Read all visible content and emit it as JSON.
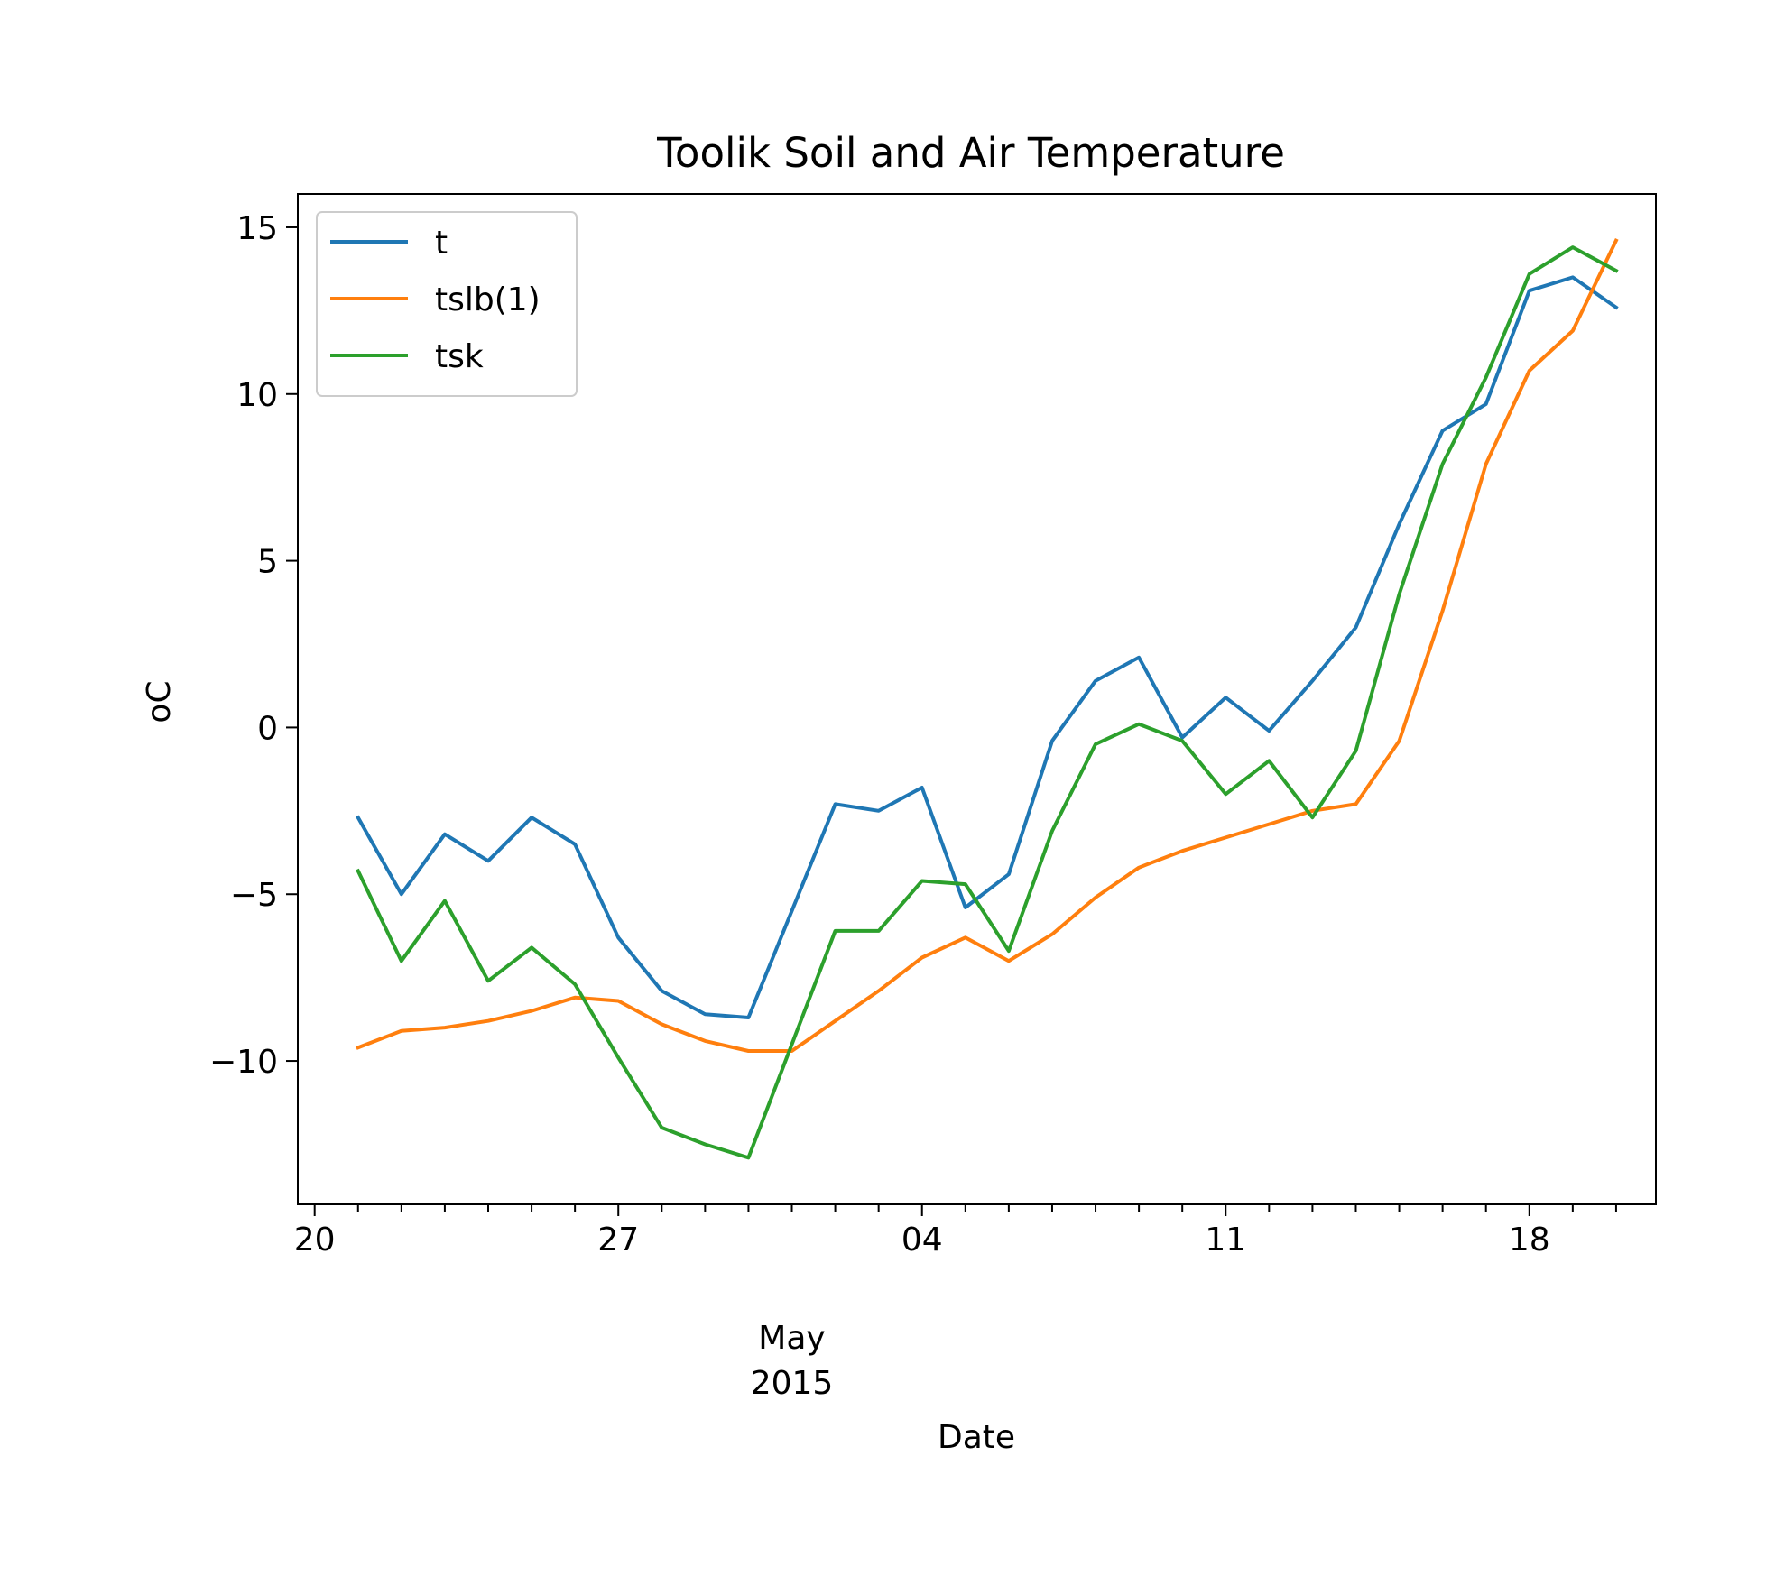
{
  "chart_data": {
    "type": "line",
    "title": "Toolik Soil and Air Temperature",
    "xlabel": "Date",
    "ylabel": "oC",
    "x_major_ticks": [
      {
        "date": "2015-04-20",
        "label": "20"
      },
      {
        "date": "2015-04-27",
        "label": "27"
      },
      {
        "date": "2015-05-04",
        "label": "04"
      },
      {
        "date": "2015-05-11",
        "label": "11"
      },
      {
        "date": "2015-05-18",
        "label": "18"
      }
    ],
    "x_minor_tick_dates": [
      "2015-04-21",
      "2015-04-22",
      "2015-04-23",
      "2015-04-24",
      "2015-04-25",
      "2015-04-26",
      "2015-04-28",
      "2015-04-29",
      "2015-04-30",
      "2015-05-01",
      "2015-05-02",
      "2015-05-03",
      "2015-05-05",
      "2015-05-06",
      "2015-05-07",
      "2015-05-08",
      "2015-05-09",
      "2015-05-10",
      "2015-05-12",
      "2015-05-13",
      "2015-05-14",
      "2015-05-15",
      "2015-05-16",
      "2015-05-17",
      "2015-05-19",
      "2015-05-20"
    ],
    "x_month_label": {
      "date": "2015-05-01",
      "lines": [
        "May",
        "2015"
      ]
    },
    "xlim": [
      "2015-04-19T14:40",
      "2015-05-20T22:00"
    ],
    "ylim": [
      -14.3,
      16.0
    ],
    "yticks": [
      {
        "value": 15,
        "label": "15"
      },
      {
        "value": 10,
        "label": "10"
      },
      {
        "value": 5,
        "label": "5"
      },
      {
        "value": 0,
        "label": "0"
      },
      {
        "value": -5,
        "label": "−5"
      },
      {
        "value": -10,
        "label": "−10"
      }
    ],
    "legend_position": "top-left",
    "x": [
      "2015-04-21",
      "2015-04-22",
      "2015-04-23",
      "2015-04-24",
      "2015-04-25",
      "2015-04-26",
      "2015-04-27",
      "2015-04-28",
      "2015-04-29",
      "2015-04-30",
      "2015-05-01",
      "2015-05-02",
      "2015-05-03",
      "2015-05-04",
      "2015-05-05",
      "2015-05-06",
      "2015-05-07",
      "2015-05-08",
      "2015-05-09",
      "2015-05-10",
      "2015-05-11",
      "2015-05-12",
      "2015-05-13",
      "2015-05-14",
      "2015-05-15",
      "2015-05-16",
      "2015-05-17",
      "2015-05-18",
      "2015-05-19",
      "2015-05-20"
    ],
    "series": [
      {
        "name": "t",
        "color": "#1f77b4",
        "values": [
          -2.7,
          -5.0,
          -3.2,
          -4.0,
          -2.7,
          -3.5,
          -6.3,
          -7.9,
          -8.6,
          -8.7,
          -5.5,
          -2.3,
          -2.5,
          -1.8,
          -5.4,
          -4.4,
          -0.4,
          1.4,
          2.1,
          -0.3,
          0.9,
          -0.1,
          1.4,
          3.0,
          6.1,
          8.9,
          9.7,
          13.1,
          13.5,
          12.6
        ]
      },
      {
        "name": "tslb(1)",
        "color": "#ff7f0e",
        "values": [
          -9.6,
          -9.1,
          -9.0,
          -8.8,
          -8.5,
          -8.1,
          -8.2,
          -8.9,
          -9.4,
          -9.7,
          -9.7,
          -8.8,
          -7.9,
          -6.9,
          -6.3,
          -7.0,
          -6.2,
          -5.1,
          -4.2,
          -3.7,
          -3.3,
          -2.9,
          -2.5,
          -2.3,
          -0.4,
          3.5,
          7.9,
          10.7,
          11.9,
          14.6
        ]
      },
      {
        "name": "tsk",
        "color": "#2ca02c",
        "values": [
          -4.3,
          -7.0,
          -5.2,
          -7.6,
          -6.6,
          -7.7,
          -9.9,
          -12.0,
          -12.5,
          -12.9,
          -9.5,
          -6.1,
          -6.1,
          -4.6,
          -4.7,
          -6.7,
          -3.1,
          -0.5,
          0.1,
          -0.4,
          -2.0,
          -1.0,
          -2.7,
          -0.7,
          4.0,
          7.9,
          10.5,
          13.6,
          14.4,
          13.7
        ]
      }
    ]
  }
}
